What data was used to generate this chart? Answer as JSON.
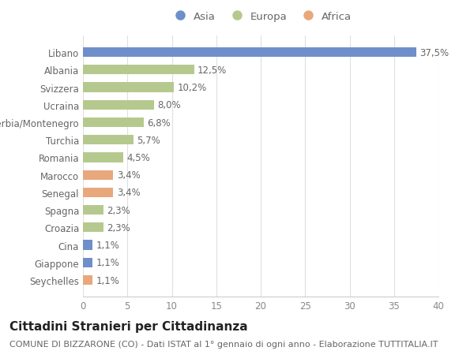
{
  "countries": [
    "Libano",
    "Albania",
    "Svizzera",
    "Ucraina",
    "Serbia/Montenegro",
    "Turchia",
    "Romania",
    "Marocco",
    "Senegal",
    "Spagna",
    "Croazia",
    "Cina",
    "Giappone",
    "Seychelles"
  ],
  "values": [
    37.5,
    12.5,
    10.2,
    8.0,
    6.8,
    5.7,
    4.5,
    3.4,
    3.4,
    2.3,
    2.3,
    1.1,
    1.1,
    1.1
  ],
  "labels": [
    "37,5%",
    "12,5%",
    "10,2%",
    "8,0%",
    "6,8%",
    "5,7%",
    "4,5%",
    "3,4%",
    "3,4%",
    "2,3%",
    "2,3%",
    "1,1%",
    "1,1%",
    "1,1%"
  ],
  "continent": [
    "Asia",
    "Europa",
    "Europa",
    "Europa",
    "Europa",
    "Europa",
    "Europa",
    "Africa",
    "Africa",
    "Europa",
    "Europa",
    "Asia",
    "Asia",
    "Africa"
  ],
  "colors": {
    "Asia": "#6e8fc9",
    "Europa": "#b5c98e",
    "Africa": "#e8a87c"
  },
  "xlim": [
    0,
    40
  ],
  "xticks": [
    0,
    5,
    10,
    15,
    20,
    25,
    30,
    35,
    40
  ],
  "title": "Cittadini Stranieri per Cittadinanza",
  "subtitle": "COMUNE DI BIZZARONE (CO) - Dati ISTAT al 1° gennaio di ogni anno - Elaborazione TUTTITALIA.IT",
  "background_color": "#ffffff",
  "bar_height": 0.55,
  "label_fontsize": 8.5,
  "tick_fontsize": 8.5,
  "legend_fontsize": 9.5,
  "title_fontsize": 11,
  "subtitle_fontsize": 8
}
